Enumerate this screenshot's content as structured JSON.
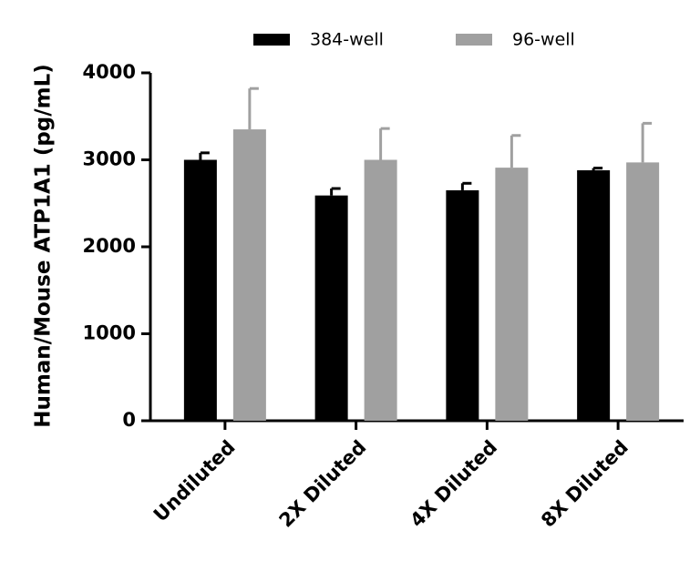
{
  "chart_data": {
    "type": "bar",
    "y_label": "Human/Mouse ATP1A1 (pg/mL)",
    "categories": [
      "Undiluted",
      "2X Diluted",
      "4X Diluted",
      "8X Diluted"
    ],
    "series": [
      {
        "name": "384-well",
        "color": "#000000",
        "values": [
          3000,
          2590,
          2650,
          2880
        ],
        "errors": [
          80,
          80,
          80,
          25
        ]
      },
      {
        "name": "96-well",
        "color": "#a0a0a0",
        "values": [
          3350,
          3000,
          2910,
          2970
        ],
        "errors": [
          470,
          360,
          370,
          450
        ]
      }
    ],
    "ylim": [
      0,
      4000
    ],
    "yticks": [
      0,
      1000,
      2000,
      3000,
      4000
    ],
    "legend": "top"
  }
}
